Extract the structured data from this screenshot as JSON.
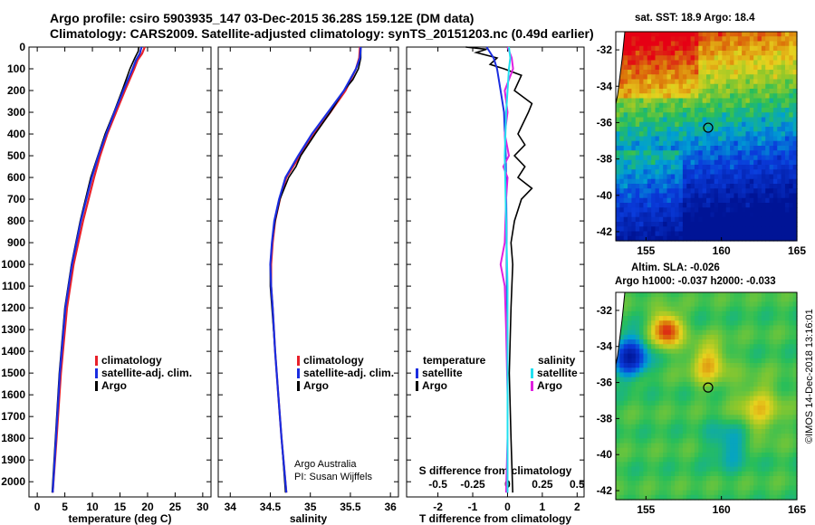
{
  "titles": {
    "line1": "Argo profile: csiro 5903935_147 03-Dec-2015 36.28S 159.12E (DM data)",
    "line2": "Climatology: CARS2009. Satellite-adjusted climatology: synTS_20151203.nc (0.49d earlier)"
  },
  "copyright": "©IMOS 14-Dec-2018 13:16:01",
  "colors": {
    "climatology": "#e8202a",
    "satellite": "#1a2de0",
    "argo": "#000000",
    "s_climatology": "#e020e0",
    "s_satellite": "#20e0f0"
  },
  "chart_data": [
    {
      "type": "line",
      "title": "temperature",
      "xlabel": "temperature (deg C)",
      "xlim": [
        -1.5,
        31.5
      ],
      "xticks": [
        "0",
        "5",
        "10",
        "15",
        "20",
        "25",
        "30"
      ],
      "ylim": [
        2070,
        0
      ],
      "yticks": [
        "0",
        "100",
        "200",
        "300",
        "400",
        "500",
        "600",
        "700",
        "800",
        "900",
        "1000",
        "1100",
        "1200",
        "1300",
        "1400",
        "1500",
        "1600",
        "1700",
        "1800",
        "1900",
        "2000"
      ],
      "legend": [
        "climatology",
        "satellite-adj. clim.",
        "Argo"
      ],
      "series": [
        {
          "name": "climatology",
          "depth": [
            0,
            30,
            60,
            100,
            200,
            300,
            400,
            500,
            600,
            800,
            1000,
            1200,
            1500,
            1800,
            2050
          ],
          "values": [
            19.5,
            19.0,
            18.2,
            17.6,
            15.9,
            14.3,
            12.7,
            11.4,
            10.3,
            8.3,
            6.6,
            5.4,
            4.3,
            3.5,
            2.8
          ]
        },
        {
          "name": "satellite-adj. clim.",
          "depth": [
            0,
            30,
            60,
            100,
            200,
            300,
            400,
            500,
            600,
            800,
            1000,
            1200,
            1500,
            1800,
            2050
          ],
          "values": [
            18.9,
            18.6,
            17.9,
            17.3,
            15.6,
            14.0,
            12.5,
            11.1,
            9.9,
            7.9,
            6.3,
            5.1,
            4.1,
            3.4,
            2.8
          ]
        },
        {
          "name": "Argo",
          "depth": [
            0,
            20,
            50,
            100,
            200,
            300,
            400,
            500,
            600,
            800,
            1000,
            1200,
            1500,
            1800,
            2050
          ],
          "values": [
            18.4,
            18.3,
            17.7,
            16.8,
            15.4,
            13.9,
            12.3,
            11.0,
            9.7,
            7.8,
            6.2,
            5.0,
            4.0,
            3.3,
            2.7
          ]
        }
      ]
    },
    {
      "type": "line",
      "title": "salinity",
      "xlabel": "salinity",
      "xlim": [
        33.85,
        36.1
      ],
      "xticks": [
        "34",
        "34.5",
        "35",
        "35.5",
        "36"
      ],
      "ylim": [
        2070,
        0
      ],
      "legend": [
        "climatology",
        "satellite-adj. clim.",
        "Argo"
      ],
      "annotation": [
        "Argo Australia",
        "PI: Susan Wijffels"
      ],
      "series": [
        {
          "name": "climatology",
          "depth": [
            0,
            50,
            100,
            200,
            300,
            400,
            500,
            600,
            700,
            800,
            900,
            1000,
            1100,
            1200,
            1400,
            1600,
            1800,
            2050
          ],
          "values": [
            35.62,
            35.61,
            35.57,
            35.44,
            35.25,
            35.05,
            34.87,
            34.7,
            34.62,
            34.56,
            34.53,
            34.51,
            34.51,
            34.53,
            34.56,
            34.6,
            34.64,
            34.7
          ]
        },
        {
          "name": "satellite-adj. clim.",
          "depth": [
            0,
            50,
            100,
            200,
            300,
            400,
            500,
            600,
            700,
            800,
            900,
            1000,
            1100,
            1200,
            1400,
            1600,
            1800,
            2050
          ],
          "values": [
            35.63,
            35.62,
            35.57,
            35.42,
            35.22,
            35.02,
            34.85,
            34.69,
            34.61,
            34.55,
            34.52,
            34.5,
            34.51,
            34.53,
            34.56,
            34.6,
            34.64,
            34.7
          ]
        },
        {
          "name": "Argo",
          "depth": [
            0,
            50,
            100,
            150,
            200,
            300,
            400,
            500,
            550,
            600,
            700,
            800,
            900,
            1000,
            1100,
            1200,
            1400,
            1600,
            1800,
            2050
          ],
          "values": [
            35.63,
            35.63,
            35.6,
            35.53,
            35.42,
            35.25,
            35.06,
            34.88,
            34.82,
            34.73,
            34.62,
            34.56,
            34.52,
            34.5,
            34.5,
            34.52,
            34.56,
            34.6,
            34.64,
            34.69
          ]
        }
      ]
    },
    {
      "type": "line",
      "title": "differences from climatology",
      "xlabel": "T difference from climatology",
      "xlim": [
        -2.9,
        2.2
      ],
      "xticks": [
        "-2",
        "-1",
        "0",
        "1",
        "2"
      ],
      "top_xlabel": "S difference from climatology",
      "top_xticks": [
        "-0.5",
        "-0.25",
        "0",
        "0.25",
        "0.5"
      ],
      "ylim": [
        2070,
        0
      ],
      "legend_temperature": [
        "temperature",
        "satellite",
        "Argo"
      ],
      "legend_salinity": [
        "salinity",
        "satellite",
        "Argo"
      ],
      "series": [
        {
          "name": "T satellite",
          "depth": [
            0,
            50,
            100,
            200,
            300,
            500,
            800,
            1100,
            1500,
            2050
          ],
          "values": [
            -0.6,
            -0.4,
            -0.3,
            -0.2,
            -0.1,
            -0.05,
            -0.03,
            -0.02,
            0.0,
            0.0
          ]
        },
        {
          "name": "T Argo",
          "depth": [
            0,
            10,
            25,
            50,
            80,
            100,
            130,
            200,
            260,
            300,
            400,
            450,
            500,
            550,
            600,
            650,
            700,
            800,
            900,
            1000,
            1200,
            1500,
            1800,
            2050
          ],
          "values": [
            -1.2,
            -0.6,
            -0.9,
            -0.3,
            -0.5,
            -0.1,
            0.4,
            0.2,
            0.7,
            0.6,
            0.3,
            0.5,
            0.2,
            0.5,
            0.3,
            0.7,
            0.4,
            0.2,
            0.1,
            0.15,
            0.1,
            0.05,
            0.1,
            0.15
          ]
        },
        {
          "name": "S satellite",
          "depth": [
            0,
            50,
            100,
            200,
            300,
            500,
            800,
            1100,
            1500,
            2050
          ],
          "values": [
            0.01,
            0.02,
            0.01,
            0.0,
            -0.01,
            -0.02,
            -0.01,
            0.0,
            0.0,
            0.0
          ]
        },
        {
          "name": "S Argo",
          "depth": [
            0,
            50,
            100,
            150,
            200,
            300,
            400,
            500,
            550,
            600,
            700,
            900,
            1000,
            1100,
            1300,
            1600,
            1800,
            2050
          ],
          "values": [
            0.0,
            0.03,
            0.04,
            0.01,
            -0.02,
            0.0,
            -0.02,
            0.01,
            -0.03,
            0.0,
            -0.01,
            -0.02,
            -0.05,
            -0.02,
            -0.01,
            0.0,
            0.0,
            -0.01
          ]
        }
      ]
    },
    {
      "type": "heatmap",
      "title": "sat. SST: 18.9 Argo: 18.4",
      "xlim": [
        153,
        165
      ],
      "ylim": [
        -42.5,
        -31
      ],
      "xticks": [
        "155",
        "160",
        "165"
      ],
      "yticks": [
        "-32",
        "-34",
        "-36",
        "-38",
        "-40",
        "-42"
      ],
      "marker": {
        "lon": 159.12,
        "lat": -36.28
      }
    },
    {
      "type": "heatmap",
      "title": "Altim. SLA: -0.026",
      "subtitle": "Argo h1000: -0.037 h2000: -0.033",
      "xlim": [
        153,
        165
      ],
      "ylim": [
        -42.5,
        -31
      ],
      "xticks": [
        "155",
        "160",
        "165"
      ],
      "yticks": [
        "-32",
        "-34",
        "-36",
        "-38",
        "-40",
        "-42"
      ],
      "marker": {
        "lon": 159.12,
        "lat": -36.28
      }
    }
  ]
}
